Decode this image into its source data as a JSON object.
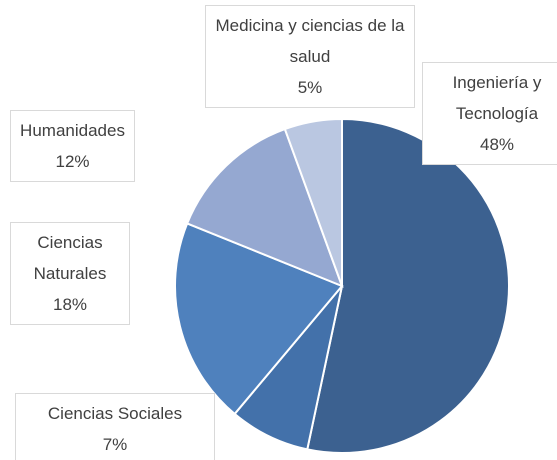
{
  "chart_data": {
    "type": "pie",
    "categories": [
      "Ingeniería y Tecnología",
      "Ciencias Sociales",
      "Ciencias Naturales",
      "Humanidades",
      "Medicina y ciencias de la salud"
    ],
    "values": [
      48,
      7,
      18,
      12,
      5
    ],
    "value_labels": [
      "48%",
      "7%",
      "18%",
      "12%",
      "5%"
    ],
    "colors": [
      "#3c6190",
      "#4371aa",
      "#4f81bd",
      "#95a8d1",
      "#bac7e1"
    ]
  }
}
